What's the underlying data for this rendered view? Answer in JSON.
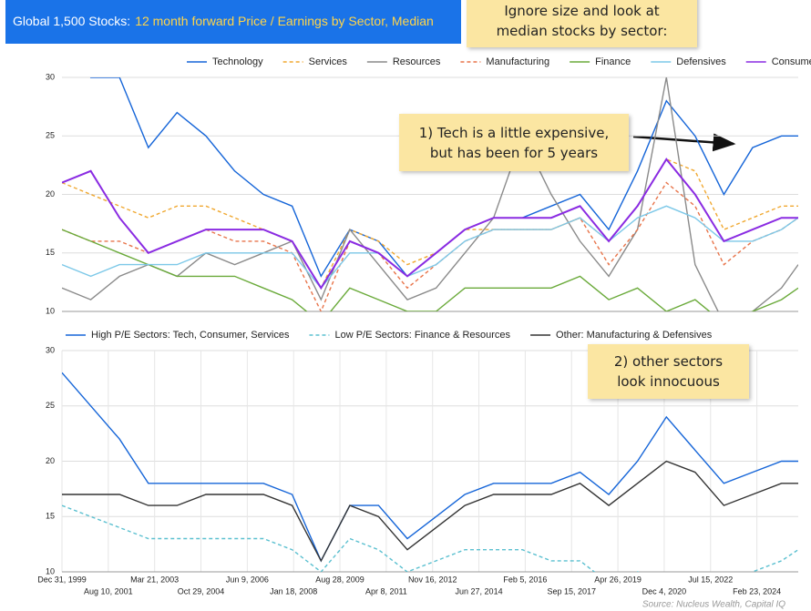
{
  "header": {
    "title_lead": "Global 1,500 Stocks:",
    "title_rest": "12 month forward Price / Earnings by Sector, Median"
  },
  "notes": [
    {
      "lines": [
        "Ignore size and look at",
        "median stocks by sector:"
      ]
    },
    {
      "lines": [
        "1) Tech is a little expensive,",
        "but has been for 5 years"
      ]
    },
    {
      "lines": [
        "2) other sectors",
        "look innocuous"
      ]
    }
  ],
  "source": "Source: Nucleus Wealth, Capital IQ",
  "chart_data": [
    {
      "type": "line",
      "x": [
        "1999-12-31",
        "2000-12-31",
        "2001-12-31",
        "2002-12-31",
        "2003-12-31",
        "2004-12-31",
        "2005-12-31",
        "2006-12-31",
        "2007-12-31",
        "2008-12-31",
        "2009-12-31",
        "2010-12-31",
        "2011-12-31",
        "2012-12-31",
        "2013-12-31",
        "2014-12-31",
        "2015-12-31",
        "2016-12-31",
        "2017-12-31",
        "2018-12-31",
        "2019-12-31",
        "2020-12-31",
        "2021-12-31",
        "2022-12-31",
        "2023-12-31",
        "2024-12-31",
        "2025-08-01"
      ],
      "xlim": [
        "1999-12-31",
        "2025-08-01"
      ],
      "ylim": [
        10,
        30
      ],
      "yticks": [
        10,
        15,
        20,
        25,
        30
      ],
      "grid": true,
      "series": [
        {
          "name": "Technology",
          "color": "#1565d8",
          "style": "solid",
          "values": [
            35,
            30,
            30,
            24,
            27,
            25,
            22,
            20,
            19,
            13,
            17,
            16,
            13,
            15,
            17,
            18,
            18,
            19,
            20,
            17,
            22,
            28,
            25,
            20,
            24,
            25,
            25
          ]
        },
        {
          "name": "Services",
          "color": "#f0a830",
          "style": "dashed",
          "values": [
            21,
            20,
            19,
            18,
            19,
            19,
            18,
            17,
            16,
            12,
            17,
            16,
            14,
            15,
            17,
            17,
            17,
            17,
            18,
            16,
            19,
            23,
            22,
            17,
            18,
            19,
            19
          ]
        },
        {
          "name": "Resources",
          "color": "#8a8a8a",
          "style": "solid",
          "values": [
            12,
            11,
            13,
            14,
            13,
            15,
            14,
            15,
            16,
            11,
            17,
            14,
            11,
            12,
            15,
            18,
            25,
            20,
            16,
            13,
            17,
            30,
            14,
            9,
            10,
            12,
            14
          ]
        },
        {
          "name": "Manufacturing",
          "color": "#e8744a",
          "style": "dashed",
          "values": [
            17,
            16,
            16,
            15,
            16,
            17,
            16,
            16,
            15,
            10,
            16,
            15,
            12,
            14,
            16,
            17,
            17,
            17,
            18,
            14,
            17,
            21,
            19,
            14,
            16,
            17,
            18
          ]
        },
        {
          "name": "Finance",
          "color": "#6aaa3a",
          "style": "solid",
          "values": [
            17,
            16,
            15,
            14,
            13,
            13,
            13,
            12,
            11,
            9,
            12,
            11,
            10,
            10,
            12,
            12,
            12,
            12,
            13,
            11,
            12,
            10,
            11,
            9,
            10,
            11,
            12
          ]
        },
        {
          "name": "Defensives",
          "color": "#7cc8e8",
          "style": "solid",
          "values": [
            14,
            13,
            14,
            14,
            14,
            15,
            15,
            15,
            15,
            12,
            15,
            15,
            13,
            14,
            16,
            17,
            17,
            17,
            18,
            16,
            18,
            19,
            18,
            16,
            16,
            17,
            18
          ]
        },
        {
          "name": "Consumer",
          "color": "#8a2be2",
          "style": "solid",
          "values": [
            21,
            22,
            18,
            15,
            16,
            17,
            17,
            17,
            16,
            12,
            16,
            15,
            13,
            15,
            17,
            18,
            18,
            18,
            19,
            16,
            19,
            23,
            20,
            16,
            17,
            18,
            18
          ]
        }
      ]
    },
    {
      "type": "line",
      "x": [
        "1999-12-31",
        "2000-12-31",
        "2001-12-31",
        "2002-12-31",
        "2003-12-31",
        "2004-12-31",
        "2005-12-31",
        "2006-12-31",
        "2007-12-31",
        "2008-12-31",
        "2009-12-31",
        "2010-12-31",
        "2011-12-31",
        "2012-12-31",
        "2013-12-31",
        "2014-12-31",
        "2015-12-31",
        "2016-12-31",
        "2017-12-31",
        "2018-12-31",
        "2019-12-31",
        "2020-12-31",
        "2021-12-31",
        "2022-12-31",
        "2023-12-31",
        "2024-12-31",
        "2025-08-01"
      ],
      "xlim": [
        "1999-12-31",
        "2025-08-01"
      ],
      "xticks": [
        {
          "value": "1999-12-31",
          "label": "Dec 31, 1999"
        },
        {
          "value": "2001-08-10",
          "label": "Aug 10, 2001"
        },
        {
          "value": "2003-03-21",
          "label": "Mar 21, 2003"
        },
        {
          "value": "2004-10-29",
          "label": "Oct 29, 2004"
        },
        {
          "value": "2006-06-09",
          "label": "Jun 9, 2006"
        },
        {
          "value": "2008-01-18",
          "label": "Jan 18, 2008"
        },
        {
          "value": "2009-08-28",
          "label": "Aug 28, 2009"
        },
        {
          "value": "2011-04-08",
          "label": "Apr 8, 2011"
        },
        {
          "value": "2012-11-16",
          "label": "Nov 16, 2012"
        },
        {
          "value": "2014-06-27",
          "label": "Jun 27, 2014"
        },
        {
          "value": "2016-02-05",
          "label": "Feb 5, 2016"
        },
        {
          "value": "2017-09-15",
          "label": "Sep 15, 2017"
        },
        {
          "value": "2019-04-26",
          "label": "Apr 26, 2019"
        },
        {
          "value": "2020-12-04",
          "label": "Dec 4, 2020"
        },
        {
          "value": "2022-07-15",
          "label": "Jul 15, 2022"
        },
        {
          "value": "2024-02-23",
          "label": "Feb 23, 2024"
        }
      ],
      "ylim": [
        10,
        30
      ],
      "yticks": [
        10,
        15,
        20,
        25,
        30
      ],
      "grid": true,
      "series": [
        {
          "name": "High P/E Sectors: Tech, Consumer, Services",
          "color": "#1565d8",
          "style": "solid",
          "values": [
            28,
            25,
            22,
            18,
            18,
            18,
            18,
            18,
            17,
            11,
            16,
            16,
            13,
            15,
            17,
            18,
            18,
            18,
            19,
            17,
            20,
            24,
            21,
            18,
            19,
            20,
            20
          ]
        },
        {
          "name": "Low P/E Sectors: Finance & Resources",
          "color": "#5bc0d0",
          "style": "dashed",
          "values": [
            16,
            15,
            14,
            13,
            13,
            13,
            13,
            13,
            12,
            10,
            13,
            12,
            10,
            11,
            12,
            12,
            12,
            11,
            11,
            9,
            10,
            9,
            9,
            9,
            10,
            11,
            12
          ]
        },
        {
          "name": "Other: Manufacturing & Defensives",
          "color": "#333333",
          "style": "solid",
          "values": [
            17,
            17,
            17,
            16,
            16,
            17,
            17,
            17,
            16,
            11,
            16,
            15,
            12,
            14,
            16,
            17,
            17,
            17,
            18,
            16,
            18,
            20,
            19,
            16,
            17,
            18,
            18
          ]
        }
      ]
    }
  ]
}
